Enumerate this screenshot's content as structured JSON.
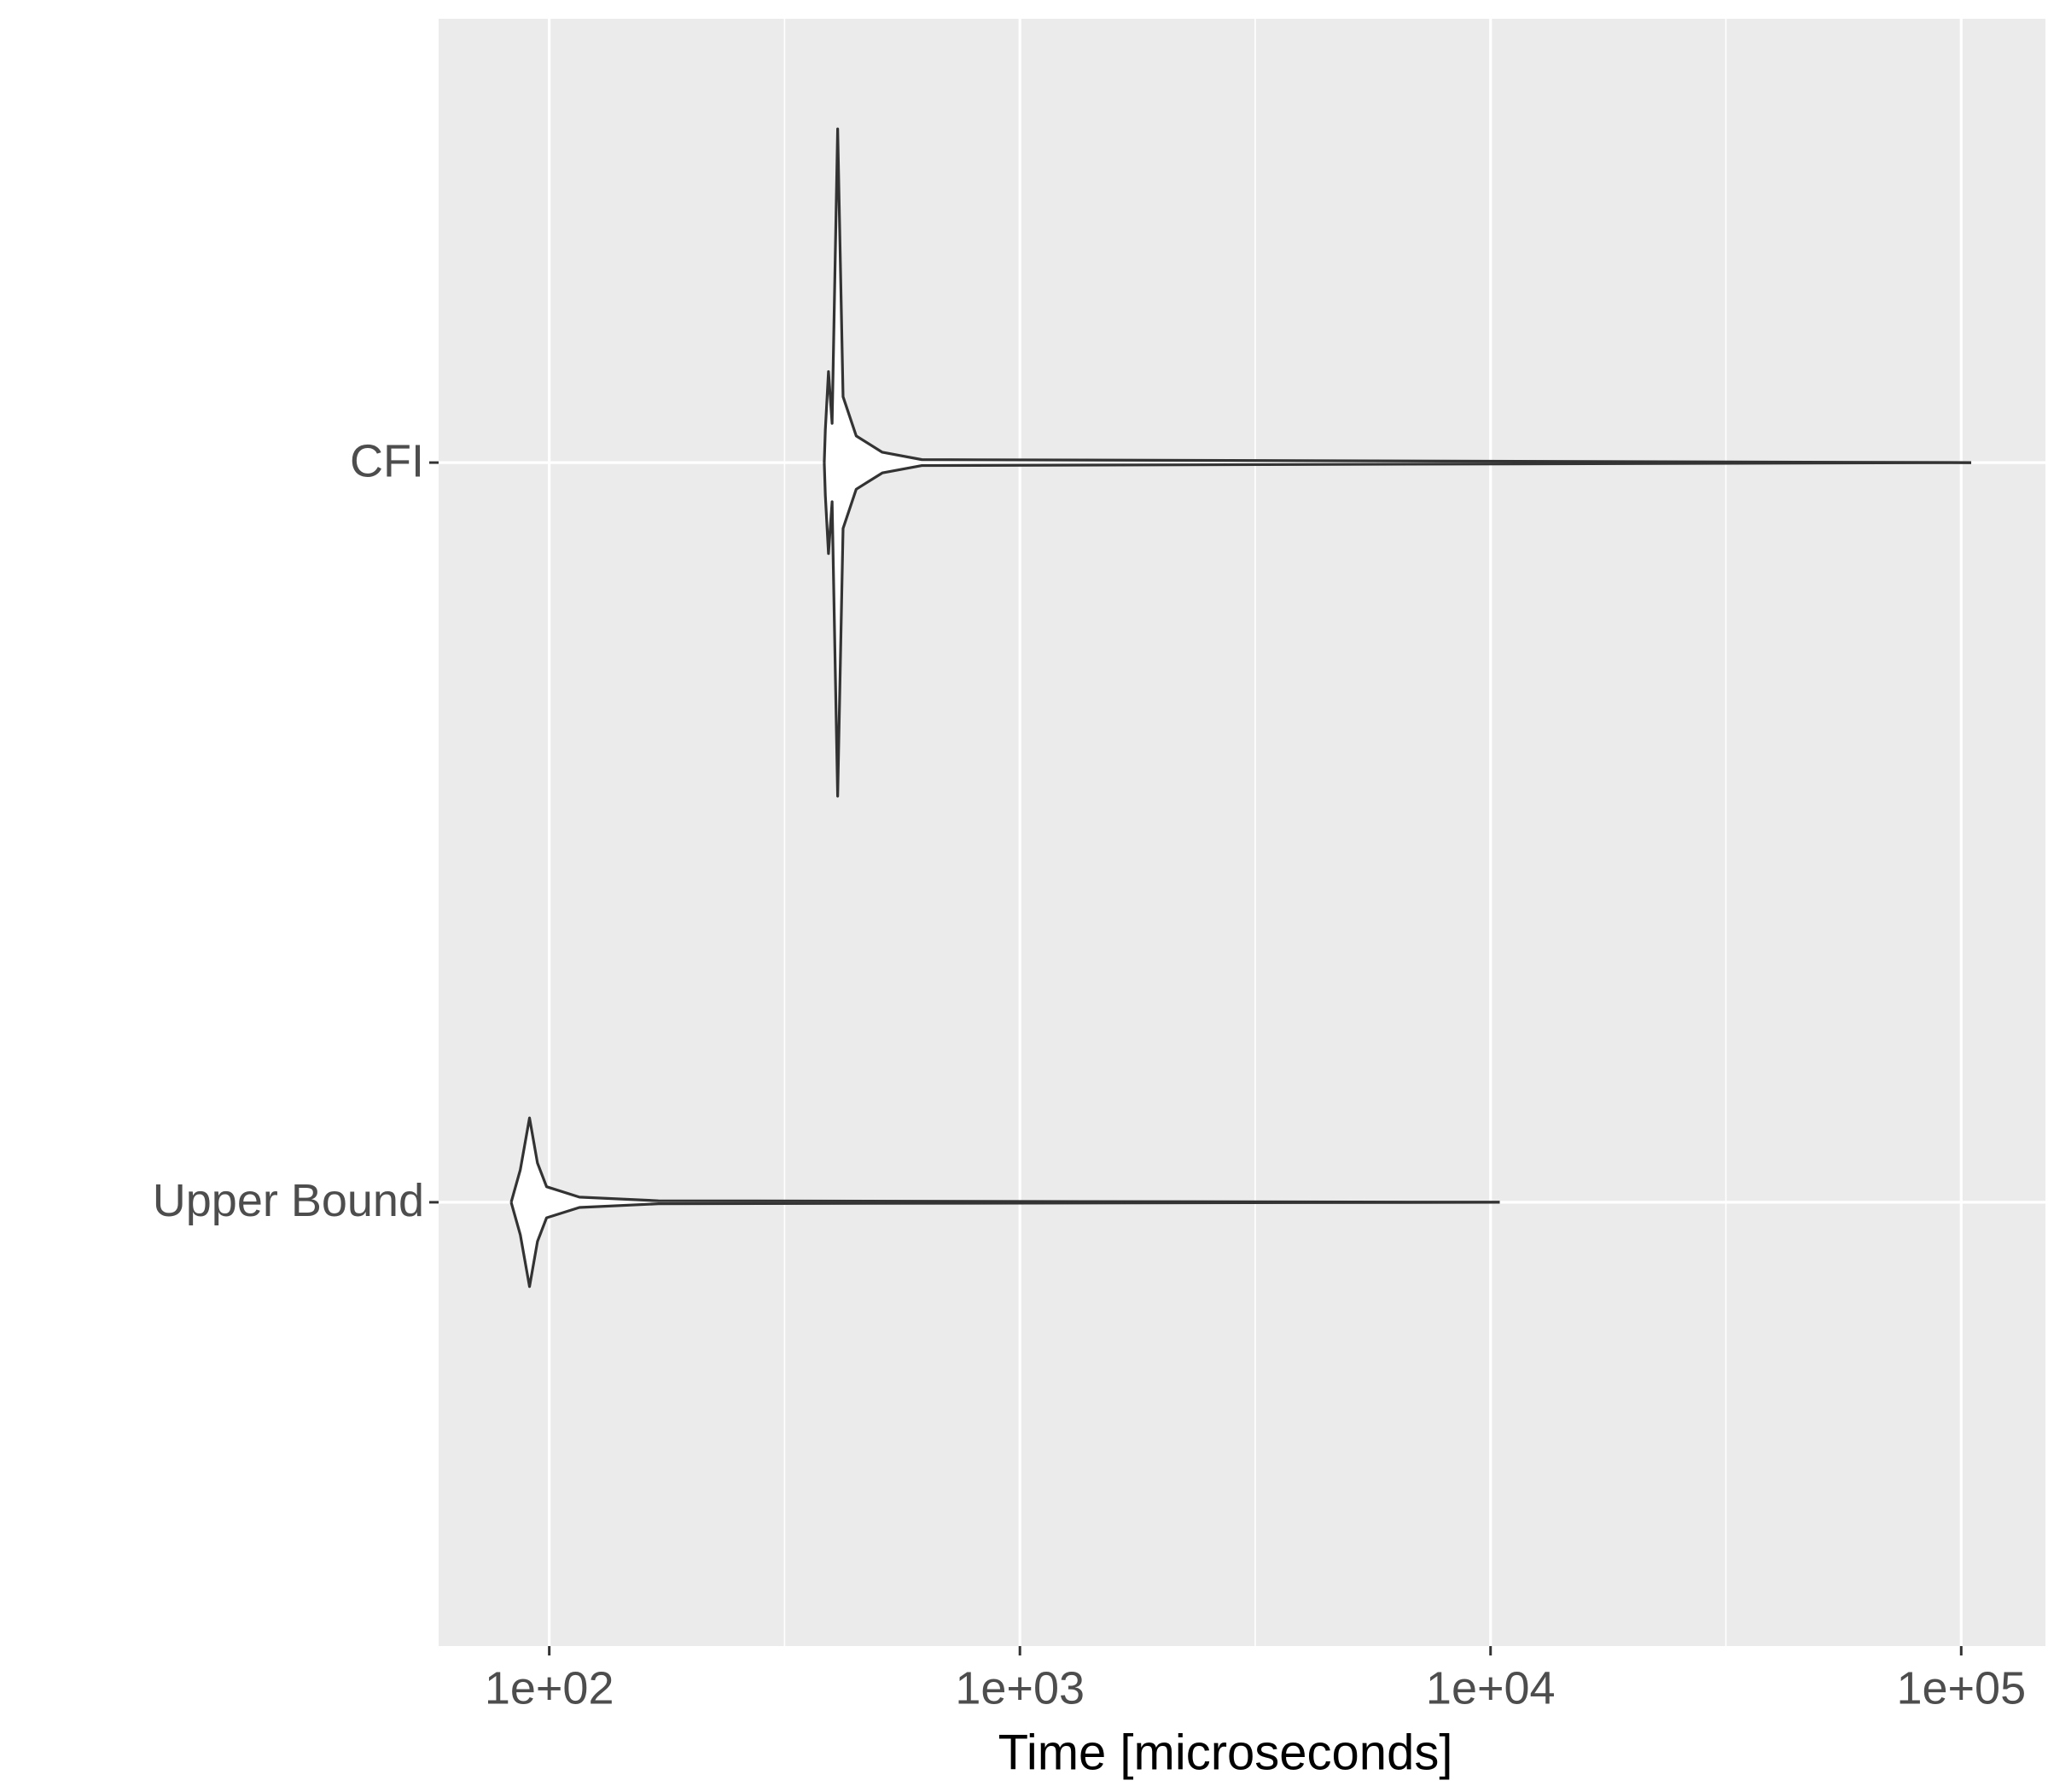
{
  "chart_data": {
    "type": "violin",
    "x_label": "Time [microseconds]",
    "categories": [
      "Upper Bound",
      "CFI"
    ],
    "x_log": true,
    "xlim": [
      58.2,
      151000
    ],
    "xticks": [
      {
        "value": 100,
        "label": "1e+02"
      },
      {
        "value": 1000,
        "label": "1e+03"
      },
      {
        "value": 10000,
        "label": "1e+04"
      },
      {
        "value": 100000,
        "label": "1e+05"
      }
    ],
    "minor_xticks": [
      316.2,
      3162,
      31623
    ],
    "grid": true,
    "panel_color": "#ebebeb",
    "fill_color": "#ffffff",
    "line_color": "#333333",
    "violins": [
      {
        "x": [
          83.0,
          86.8,
          90.8,
          94.4,
          98.7,
          115.9,
          170.6,
          10460
        ],
        "half_width": [
          0,
          0.044,
          0.114,
          0.053,
          0.021,
          0.007,
          0.002,
          0
        ]
      },
      {
        "x": [
          384,
          386,
          392,
          399,
          410,
          421,
          449,
          510,
          619,
          105000
        ],
        "half_width": [
          0,
          0.044,
          0.123,
          0.053,
          0.451,
          0.089,
          0.036,
          0.014,
          0.004,
          0
        ]
      }
    ]
  }
}
